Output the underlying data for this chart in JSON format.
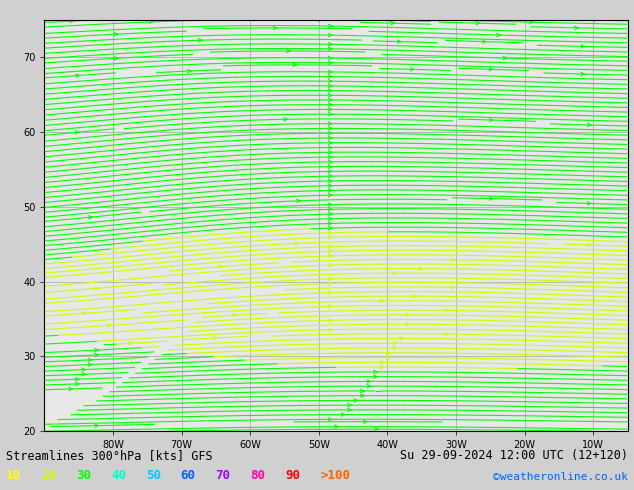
{
  "title_left": "Streamlines 300°hPa [kts] GFS",
  "title_right": "Su 29-09-2024 12:00 UTC (12+120)",
  "credit": "©weatheronline.co.uk",
  "legend_values": [
    "10",
    "20",
    "30",
    "40",
    "50",
    "60",
    "70",
    "80",
    "90",
    ">100"
  ],
  "legend_colors": [
    "#ffff00",
    "#c8ff00",
    "#00ff00",
    "#00ffc8",
    "#00c8ff",
    "#0064ff",
    "#aa00ff",
    "#ff00aa",
    "#ff0000",
    "#ff6400"
  ],
  "background_color": "#d0d0d0",
  "map_bg_color": "#e8e8e8",
  "land_color": "#c8e8a0",
  "grid_color": "#888888",
  "axis_label_color": "#000000",
  "bottom_bar_color": "#c0c0c0",
  "figsize": [
    6.34,
    4.9
  ],
  "dpi": 100,
  "xlim": [
    -90,
    -5
  ],
  "ylim": [
    20,
    75
  ],
  "xticks": [
    -80,
    -70,
    -60,
    -50,
    -40,
    -30,
    -20,
    -10
  ],
  "yticks": [
    20,
    30,
    40,
    50,
    60,
    70
  ],
  "xlabel_labels": [
    "80W",
    "70W",
    "60W",
    "50W",
    "40W",
    "30W",
    "20W",
    "10W"
  ],
  "ylabel_labels": [
    "20",
    "30",
    "40",
    "50",
    "60",
    "70"
  ],
  "streamline_density": 3,
  "streamline_linewidth": 0.8,
  "arrow_size": 0.6
}
